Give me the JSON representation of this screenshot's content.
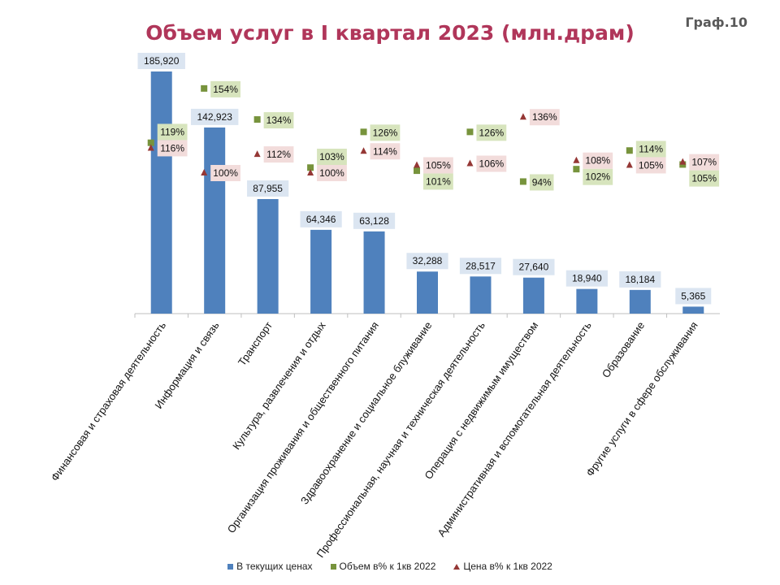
{
  "header": {
    "tag": "Граф.10"
  },
  "chart_data": {
    "type": "bar",
    "title": "Объем услуг в I квартал 2023 (млн.драм)",
    "categories": [
      "Финансовая и страховая деятельность",
      "Информация и связь",
      "Транспорт",
      "Культура, развлечения и отдых",
      "Организация проживания и общественного питания",
      "Здравоохранение и социальное блуживание",
      "Профессиональная, научная и техническая деятельность",
      "Операция с недвижимым имуществом",
      "Административная и вспомогательная деятельность",
      "Образование",
      "Фругие услуги в сфере обслуживания"
    ],
    "series": [
      {
        "name": "В текущих ценах",
        "kind": "bar",
        "color": "#4f81bd",
        "values": [
          185920,
          142923,
          87955,
          64346,
          63128,
          32288,
          28517,
          27640,
          18940,
          18184,
          5365
        ],
        "labels": [
          "185,920",
          "142,923",
          "87,955",
          "64,346",
          "63,128",
          "32,288",
          "28,517",
          "27,640",
          "18,940",
          "18,184",
          "5,365"
        ]
      },
      {
        "name": "Объем в% к 1кв 2022",
        "kind": "square-marker",
        "color": "#77933c",
        "values": [
          119,
          154,
          134,
          103,
          126,
          101,
          126,
          94,
          102,
          114,
          105
        ],
        "labels": [
          "119%",
          "154%",
          "134%",
          "103%",
          "126%",
          "101%",
          "126%",
          "94%",
          "102%",
          "114%",
          "105%"
        ]
      },
      {
        "name": "Цена в% к 1кв 2022",
        "kind": "triangle-marker",
        "color": "#953735",
        "values": [
          116,
          100,
          112,
          100,
          114,
          105,
          106,
          136,
          108,
          105,
          107
        ],
        "labels": [
          "116%",
          "100%",
          "112%",
          "100%",
          "114%",
          "105%",
          "106%",
          "136%",
          "108%",
          "105%",
          "107%"
        ]
      }
    ],
    "legend_position": "bottom",
    "grid": false
  }
}
